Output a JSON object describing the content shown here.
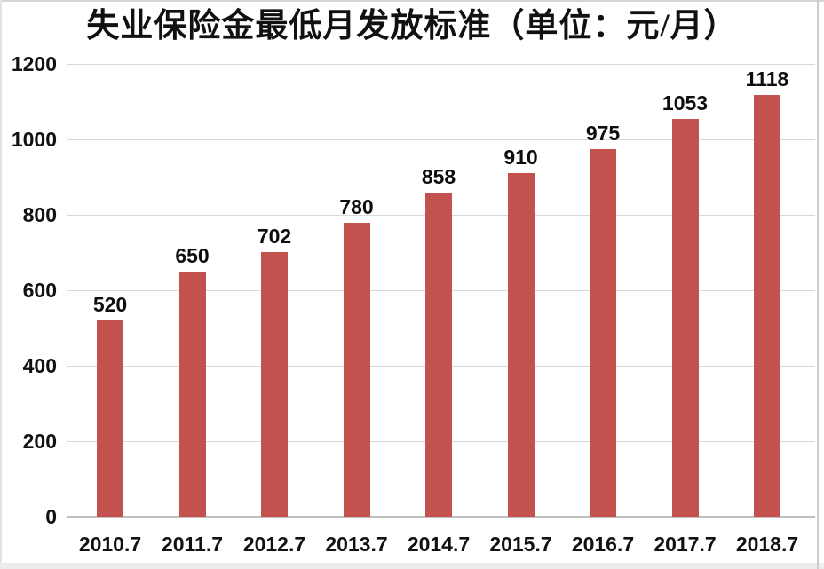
{
  "page": {
    "background_color": "#ffffff",
    "edge_color": "#ededed"
  },
  "chart_data": {
    "type": "bar",
    "title": "失业保险金最低月发放标准（单位：元/月）",
    "categories": [
      "2010.7",
      "2011.7",
      "2012.7",
      "2013.7",
      "2014.7",
      "2015.7",
      "2016.7",
      "2017.7",
      "2018.7"
    ],
    "values": [
      520,
      650,
      702,
      780,
      858,
      910,
      975,
      1053,
      1118
    ],
    "xlabel": "",
    "ylabel": "",
    "ylim": [
      0,
      1200
    ],
    "yticks": [
      0,
      200,
      400,
      600,
      800,
      1000,
      1200
    ],
    "grid": "horizontal gridlines on",
    "legend": "none",
    "data_labels": "values shown above bars",
    "bar_color": "#c3514e",
    "gridline_color": "#d8d8d8",
    "axis_line_color": "#bfbfbf",
    "text_color": "#111111"
  }
}
